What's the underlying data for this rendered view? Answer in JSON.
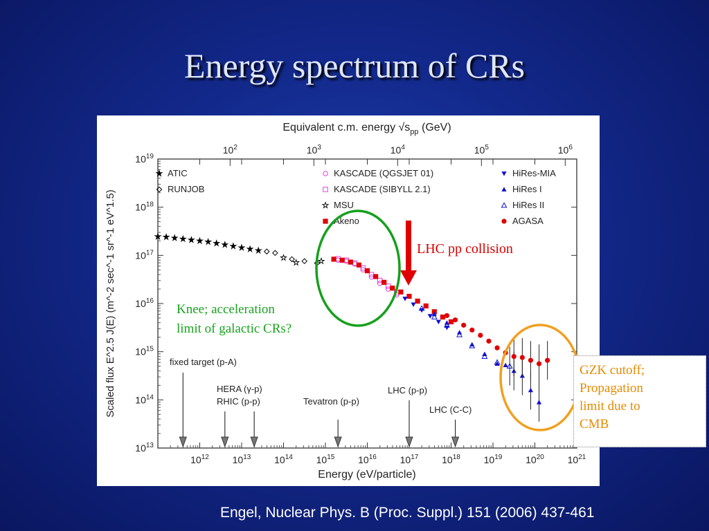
{
  "slide": {
    "title": "Energy spectrum of CRs",
    "citation": "Engel, Nuclear Phys. B (Proc. Suppl.) 151 (2006) 437-461"
  },
  "chart_data": {
    "type": "scatter",
    "top_axis_label": "Equivalent c.m. energy √s_pp (GeV)",
    "top_axis_label_main": "Equivalent c.m. energy √s",
    "top_axis_label_sub": "pp",
    "top_axis_label_unit": "(GeV)",
    "top_ticks": [
      {
        "base": "10",
        "exp": "2",
        "energy_ev": 5300000000000.0
      },
      {
        "base": "10",
        "exp": "3",
        "energy_ev": 530000000000000.0
      },
      {
        "base": "10",
        "exp": "4",
        "energy_ev": 5.3e+16
      },
      {
        "base": "10",
        "exp": "5",
        "energy_ev": 5.3e+18
      },
      {
        "base": "10",
        "exp": "6",
        "energy_ev": 5.3e+20
      }
    ],
    "xlabel": "Energy    (eV/particle)",
    "xlim_log10": [
      11,
      21
    ],
    "x_ticks": [
      {
        "base": "10",
        "exp": "12"
      },
      {
        "base": "10",
        "exp": "13"
      },
      {
        "base": "10",
        "exp": "14"
      },
      {
        "base": "10",
        "exp": "15"
      },
      {
        "base": "10",
        "exp": "16"
      },
      {
        "base": "10",
        "exp": "17"
      },
      {
        "base": "10",
        "exp": "18"
      },
      {
        "base": "10",
        "exp": "19"
      },
      {
        "base": "10",
        "exp": "20"
      },
      {
        "base": "10",
        "exp": "21"
      }
    ],
    "ylabel": "Scaled flux   E^2.5 J(E)   (m^-2 sec^-1 sr^-1 eV^1.5)",
    "ylim_log10": [
      13,
      19
    ],
    "y_ticks": [
      {
        "base": "10",
        "exp": "13"
      },
      {
        "base": "10",
        "exp": "14"
      },
      {
        "base": "10",
        "exp": "15"
      },
      {
        "base": "10",
        "exp": "16"
      },
      {
        "base": "10",
        "exp": "17"
      },
      {
        "base": "10",
        "exp": "18"
      },
      {
        "base": "10",
        "exp": "19"
      }
    ],
    "legend": {
      "placement": "top",
      "entries": [
        {
          "name": "ATIC",
          "marker": "star",
          "color": "#000000"
        },
        {
          "name": "RUNJOB",
          "marker": "diamond-open",
          "color": "#000000"
        },
        {
          "name": "KASCADE (QGSJET 01)",
          "marker": "circle-open",
          "color": "#e040e0"
        },
        {
          "name": "KASCADE (SIBYLL 2.1)",
          "marker": "square-open",
          "color": "#e040e0"
        },
        {
          "name": "MSU",
          "marker": "star-open",
          "color": "#000000"
        },
        {
          "name": "Akeno",
          "marker": "square",
          "color": "#e00000"
        },
        {
          "name": "HiRes-MIA",
          "marker": "triangle-down",
          "color": "#1010d0"
        },
        {
          "name": "HiRes I",
          "marker": "triangle",
          "color": "#1010d0"
        },
        {
          "name": "HiRes II",
          "marker": "triangle-open",
          "color": "#1010d0"
        },
        {
          "name": "AGASA",
          "marker": "circle",
          "color": "#e00000"
        }
      ]
    },
    "series": [
      {
        "name": "ATIC",
        "points": [
          [
            11.0,
            17.39
          ],
          [
            11.2,
            17.38
          ],
          [
            11.4,
            17.36
          ],
          [
            11.6,
            17.34
          ],
          [
            11.8,
            17.32
          ],
          [
            12.0,
            17.3
          ],
          [
            12.2,
            17.28
          ],
          [
            12.4,
            17.25
          ],
          [
            12.6,
            17.22
          ],
          [
            12.8,
            17.19
          ],
          [
            13.0,
            17.16
          ],
          [
            13.2,
            17.13
          ],
          [
            13.4,
            17.1
          ]
        ]
      },
      {
        "name": "RUNJOB",
        "points": [
          [
            13.6,
            17.08
          ],
          [
            13.8,
            17.05
          ],
          [
            14.2,
            16.92
          ],
          [
            14.5,
            16.88
          ],
          [
            14.8,
            16.84
          ]
        ]
      },
      {
        "name": "MSU",
        "points": [
          [
            14.0,
            16.95
          ],
          [
            14.3,
            16.85
          ],
          [
            14.9,
            16.88
          ]
        ]
      },
      {
        "name": "KASCADE (QGSJET 01)",
        "points": [
          [
            15.3,
            16.9
          ],
          [
            15.5,
            16.88
          ],
          [
            15.7,
            16.82
          ],
          [
            15.9,
            16.7
          ],
          [
            16.1,
            16.55
          ],
          [
            16.3,
            16.42
          ],
          [
            16.5,
            16.3
          ],
          [
            16.7,
            16.18
          ]
        ]
      },
      {
        "name": "KASCADE (SIBYLL 2.1)",
        "points": [
          [
            15.3,
            16.93
          ],
          [
            15.5,
            16.9
          ],
          [
            15.7,
            16.84
          ],
          [
            15.9,
            16.74
          ],
          [
            16.1,
            16.6
          ],
          [
            16.3,
            16.48
          ],
          [
            16.5,
            16.36
          ],
          [
            16.7,
            16.22
          ]
        ]
      },
      {
        "name": "Akeno",
        "points": [
          [
            15.2,
            16.92
          ],
          [
            15.4,
            16.9
          ],
          [
            15.6,
            16.86
          ],
          [
            15.8,
            16.8
          ],
          [
            16.0,
            16.68
          ],
          [
            16.2,
            16.56
          ],
          [
            16.4,
            16.44
          ],
          [
            16.6,
            16.32
          ],
          [
            16.8,
            16.24
          ],
          [
            17.0,
            16.15
          ],
          [
            17.2,
            16.05
          ],
          [
            17.4,
            15.95
          ],
          [
            17.6,
            15.83
          ],
          [
            17.8,
            15.72
          ],
          [
            18.0,
            15.62
          ]
        ]
      },
      {
        "name": "HiRes-MIA",
        "points": [
          [
            16.9,
            16.1
          ],
          [
            17.1,
            15.98
          ],
          [
            17.3,
            15.86
          ],
          [
            17.5,
            15.74
          ],
          [
            17.7,
            15.62
          ],
          [
            17.9,
            15.5
          ]
        ]
      },
      {
        "name": "HiRes I",
        "points": [
          [
            17.6,
            15.78
          ],
          [
            17.9,
            15.6
          ],
          [
            18.2,
            15.4
          ],
          [
            18.5,
            15.15
          ],
          [
            18.8,
            14.95
          ],
          [
            19.1,
            14.75
          ],
          [
            19.3,
            14.72
          ],
          [
            19.5,
            14.6
          ],
          [
            19.7,
            14.5
          ],
          [
            19.9,
            14.2
          ],
          [
            20.1,
            13.95
          ]
        ]
      },
      {
        "name": "HiRes II",
        "points": [
          [
            17.3,
            15.9
          ],
          [
            17.6,
            15.72
          ],
          [
            17.9,
            15.55
          ],
          [
            18.2,
            15.35
          ],
          [
            18.5,
            15.12
          ],
          [
            18.8,
            14.9
          ],
          [
            19.1,
            14.78
          ],
          [
            19.4,
            14.7
          ]
        ]
      },
      {
        "name": "AGASA",
        "points": [
          [
            17.9,
            15.75
          ],
          [
            18.1,
            15.66
          ],
          [
            18.3,
            15.55
          ],
          [
            18.5,
            15.45
          ],
          [
            18.7,
            15.34
          ],
          [
            18.9,
            15.22
          ],
          [
            19.1,
            15.08
          ],
          [
            19.3,
            14.98
          ],
          [
            19.5,
            14.9
          ],
          [
            19.7,
            14.88
          ],
          [
            19.9,
            14.82
          ],
          [
            20.1,
            14.75
          ],
          [
            20.3,
            14.82
          ]
        ]
      }
    ],
    "accelerator_markers": [
      {
        "label": "fixed target (p-A)",
        "x_log10": 11.6
      },
      {
        "label": "HERA (γ-p)",
        "x_log10": 12.6
      },
      {
        "label": "RHIC (p-p)",
        "x_log10": 13.3
      },
      {
        "label": "Tevatron (p-p)",
        "x_log10": 15.3
      },
      {
        "label": "LHC (p-p)",
        "x_log10": 17.0
      },
      {
        "label": "LHC (C-C)",
        "x_log10": 18.1
      }
    ],
    "annotations": {
      "lhc_arrow": "LHC pp collision",
      "knee": "Knee; acceleration\nlimit of galactic CRs?",
      "gzk": "GZK cutoff;\nPropagation\nlimit due to\nCMB"
    }
  }
}
